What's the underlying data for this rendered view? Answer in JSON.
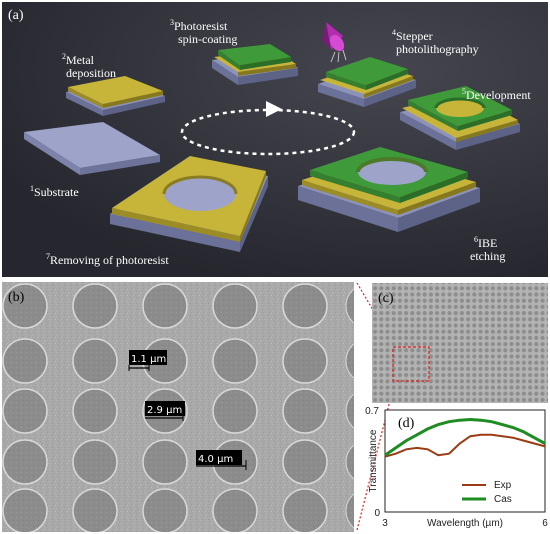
{
  "panels": {
    "a": "(a)",
    "b": "(b)",
    "c": "(c)",
    "d": "(d)"
  },
  "steps": [
    {
      "num": "1",
      "lines": [
        "Substrate"
      ]
    },
    {
      "num": "2",
      "lines": [
        "Metal",
        "deposition"
      ]
    },
    {
      "num": "3",
      "lines": [
        "Photoresist",
        "spin-coating"
      ]
    },
    {
      "num": "4",
      "lines": [
        "Stepper",
        "photolithography"
      ]
    },
    {
      "num": "5",
      "lines": [
        "Development"
      ]
    },
    {
      "num": "6",
      "lines": [
        "IBE",
        "etching"
      ]
    },
    {
      "num": "7",
      "lines": [
        "Removing of photoresist"
      ]
    }
  ],
  "scale_bars": [
    "1.1 µm",
    "2.9 µm",
    "4.0 µm"
  ],
  "colors": {
    "panel_a_bg": "#2c2d35",
    "substrate": "#9a9fc6",
    "metal": "#c7b53a",
    "photoresist": "#3f9a3a",
    "stepper_cone": "#b02dae",
    "exp_series": "#9b3a13",
    "cas_series": "#1e8c22"
  },
  "chart_data": {
    "type": "line",
    "xlabel": "Wavelength (µm)",
    "ylabel": "Transmittance",
    "xlim": [
      3,
      6
    ],
    "ylim": [
      0,
      0.7
    ],
    "x_ticks": [
      "3",
      "6"
    ],
    "y_ticks": [
      "0",
      "0.7"
    ],
    "legend_position": "bottom-right",
    "series": [
      {
        "name": "Exp",
        "x": [
          3.0,
          3.2,
          3.4,
          3.6,
          3.8,
          4.0,
          4.2,
          4.4,
          4.6,
          4.8,
          5.0,
          5.2,
          5.4,
          5.6,
          5.8,
          6.0
        ],
        "y": [
          0.38,
          0.4,
          0.43,
          0.44,
          0.43,
          0.39,
          0.4,
          0.47,
          0.52,
          0.53,
          0.53,
          0.52,
          0.51,
          0.49,
          0.47,
          0.45
        ]
      },
      {
        "name": "Cas",
        "x": [
          3.0,
          3.2,
          3.4,
          3.6,
          3.8,
          4.0,
          4.2,
          4.4,
          4.6,
          4.8,
          5.0,
          5.2,
          5.4,
          5.6,
          5.8,
          6.0
        ],
        "y": [
          0.39,
          0.44,
          0.49,
          0.53,
          0.57,
          0.6,
          0.62,
          0.63,
          0.635,
          0.63,
          0.62,
          0.6,
          0.58,
          0.55,
          0.51,
          0.47
        ]
      }
    ]
  }
}
